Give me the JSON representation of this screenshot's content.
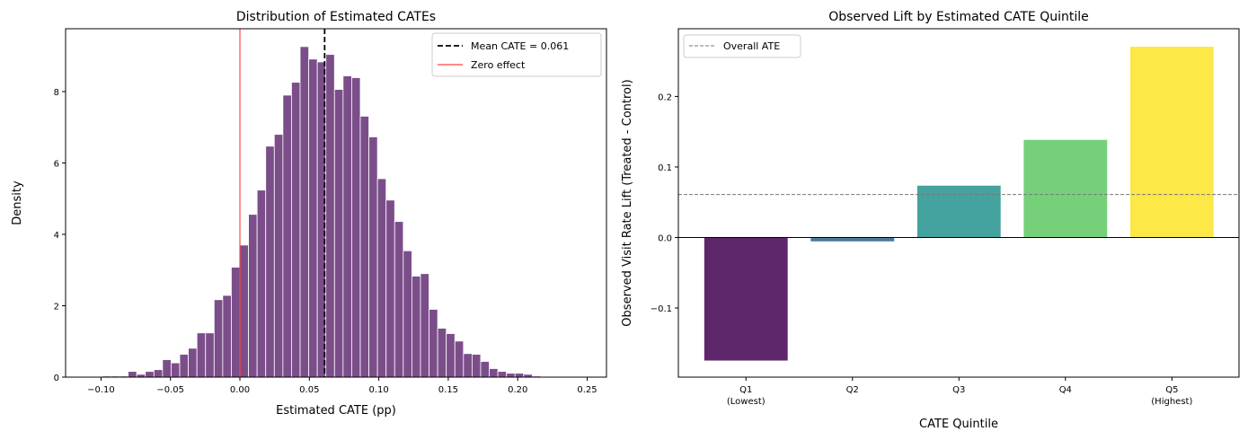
{
  "chart_data": [
    {
      "type": "bar",
      "subtype": "histogram",
      "title": "Distribution of Estimated CATEs",
      "xlabel": "Estimated CATE (pp)",
      "ylabel": "Density",
      "xlim": [
        -0.1255,
        0.2639
      ],
      "ylim": [
        0,
        9.76
      ],
      "xticks": [
        -0.1,
        -0.05,
        0.0,
        0.05,
        0.1,
        0.15,
        0.2,
        0.25
      ],
      "xtick_labels": [
        "−0.10",
        "−0.05",
        "0.00",
        "0.05",
        "0.10",
        "0.15",
        "0.20",
        "0.25"
      ],
      "yticks": [
        0,
        2,
        4,
        6,
        8
      ],
      "ytick_labels": [
        "0",
        "2",
        "4",
        "6",
        "8"
      ],
      "bin_start": -0.1238,
      "bin_width": 0.00619,
      "densities": [
        0.01,
        0.01,
        0.01,
        0.01,
        0.03,
        0.03,
        0.03,
        0.16,
        0.08,
        0.16,
        0.21,
        0.49,
        0.4,
        0.64,
        0.81,
        1.24,
        1.24,
        2.17,
        2.29,
        3.08,
        3.7,
        4.56,
        5.24,
        6.47,
        6.8,
        7.9,
        8.26,
        9.26,
        8.91,
        8.83,
        9.04,
        8.06,
        8.44,
        8.39,
        7.31,
        6.73,
        5.56,
        4.96,
        4.36,
        3.54,
        2.83,
        2.9,
        1.9,
        1.37,
        1.22,
        1.01,
        0.66,
        0.64,
        0.44,
        0.24,
        0.16,
        0.11,
        0.11,
        0.08,
        0.03,
        0.01,
        0.01,
        0.01,
        0.01,
        0.01
      ],
      "bar_color": "#7b4e8a",
      "mean_line": {
        "value": 0.061,
        "label": "Mean CATE = 0.061",
        "color": "#000000"
      },
      "zero_line": {
        "value": 0,
        "label": "Zero effect",
        "color": "#ff4444"
      },
      "legend_placement": "top-right"
    },
    {
      "type": "bar",
      "title": "Observed Lift by Estimated CATE Quintile",
      "xlabel": "CATE Quintile",
      "ylabel": "Observed Visit Rate Lift (Treated - Control)",
      "categories": [
        "Q1",
        "Q2",
        "Q3",
        "Q4",
        "Q5"
      ],
      "category_sublabels": [
        "(Lowest)",
        "",
        "",
        "",
        "(Highest)"
      ],
      "values": [
        -0.175,
        -0.006,
        0.074,
        0.139,
        0.271
      ],
      "colors": [
        "#5f276b",
        "#4a7ba0",
        "#44a39e",
        "#76d07a",
        "#fce846"
      ],
      "ylim": [
        -0.198,
        0.296
      ],
      "yticks": [
        -0.1,
        0.0,
        0.1,
        0.2
      ],
      "ytick_labels": [
        "−0.1",
        "0.0",
        "0.1",
        "0.2"
      ],
      "ate_line": {
        "value": 0.061,
        "label": "Overall ATE",
        "color": "#777777"
      },
      "legend_placement": "top-left"
    }
  ]
}
